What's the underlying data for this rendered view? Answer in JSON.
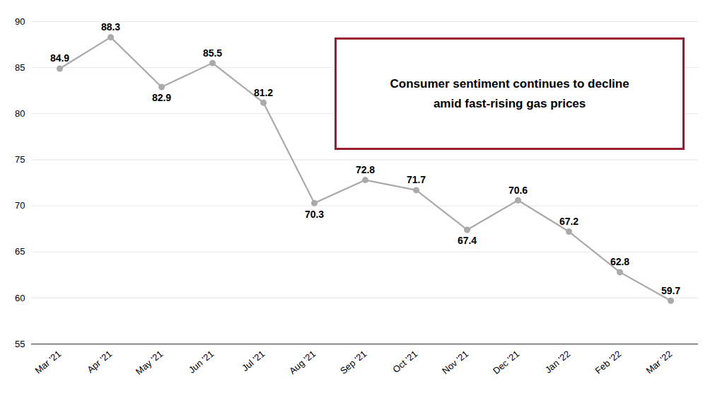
{
  "chart_data": {
    "type": "line",
    "categories": [
      "Mar '21",
      "Apr '21",
      "May '21",
      "Jun '21",
      "Jul '21",
      "Aug '21",
      "Sep '21",
      "Oct '21",
      "Nov '21",
      "Dec '21",
      "Jan '22",
      "Feb '22",
      "Mar '22"
    ],
    "values": [
      84.9,
      88.3,
      82.9,
      85.5,
      81.2,
      70.3,
      72.8,
      71.7,
      67.4,
      70.6,
      67.2,
      62.8,
      59.7
    ],
    "color": "#aaaaaa",
    "marker": "circle",
    "ylim": [
      55,
      90
    ],
    "yticks": [
      55,
      60,
      65,
      70,
      75,
      80,
      85,
      90
    ],
    "grid": true,
    "data_labels": true,
    "annotation": "Consumer sentiment continues to decline\namid fast-rising gas prices"
  }
}
